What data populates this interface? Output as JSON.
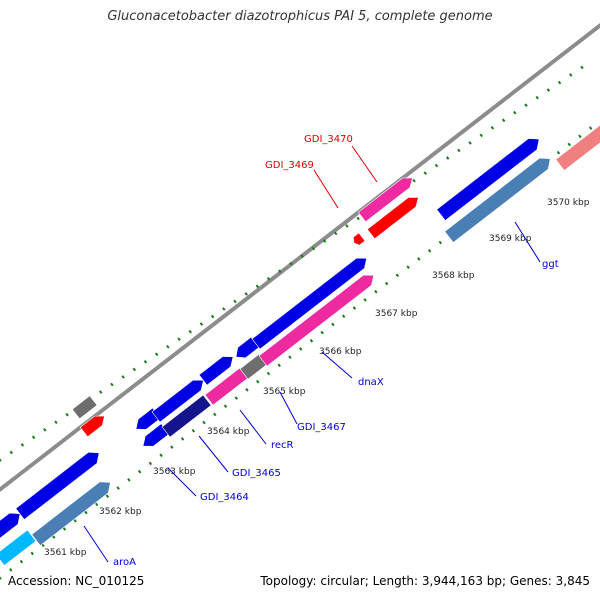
{
  "header": {
    "title": "Gluconacetobacter diazotrophicus PAI 5, complete genome"
  },
  "footer": {
    "accession": "Accession: NC_010125",
    "topology": "Topology: circular; Length: 3,944,163 bp; Genes: 3,845"
  },
  "colors": {
    "backbone": "#8c8c8c",
    "tick": "#1a7a1a",
    "blue": "#0000e6",
    "steelblue": "#4a7fb5",
    "pink": "#ee2aa0",
    "red": "#ff0000",
    "gray": "#6e6e6e",
    "lightpink": "#f08080",
    "cyan": "#00b8ff",
    "navy": "#14148c",
    "label_blue": "#0000cc",
    "label_red": "#dd0000"
  },
  "ticks": [
    "3561 kbp",
    "3562 kbp",
    "3563 kbp",
    "3564 kbp",
    "3565 kbp",
    "3566 kbp",
    "3567 kbp",
    "3568 kbp",
    "3569 kbp",
    "3570 kbp"
  ],
  "gene_labels": [
    {
      "name": "aroA",
      "color": "label_blue"
    },
    {
      "name": "GDI_3464",
      "color": "label_blue"
    },
    {
      "name": "GDI_3465",
      "color": "label_blue"
    },
    {
      "name": "recR",
      "color": "label_blue"
    },
    {
      "name": "GDI_3467",
      "color": "label_blue"
    },
    {
      "name": "dnaX",
      "color": "label_blue"
    },
    {
      "name": "ggt",
      "color": "label_blue"
    },
    {
      "name": "GDI_3469",
      "color": "label_red"
    },
    {
      "name": "GDI_3470",
      "color": "label_red"
    }
  ],
  "features": [
    {
      "name": "cyan-gene",
      "color": "cyan"
    },
    {
      "name": "blue-gene",
      "color": "blue"
    },
    {
      "name": "steelblue-gene",
      "color": "steelblue"
    },
    {
      "name": "navy-gene",
      "color": "navy"
    },
    {
      "name": "pink-gene",
      "color": "pink"
    },
    {
      "name": "gray-gene",
      "color": "gray"
    },
    {
      "name": "red-gene",
      "color": "red"
    },
    {
      "name": "lightpink-gene",
      "color": "lightpink"
    }
  ]
}
